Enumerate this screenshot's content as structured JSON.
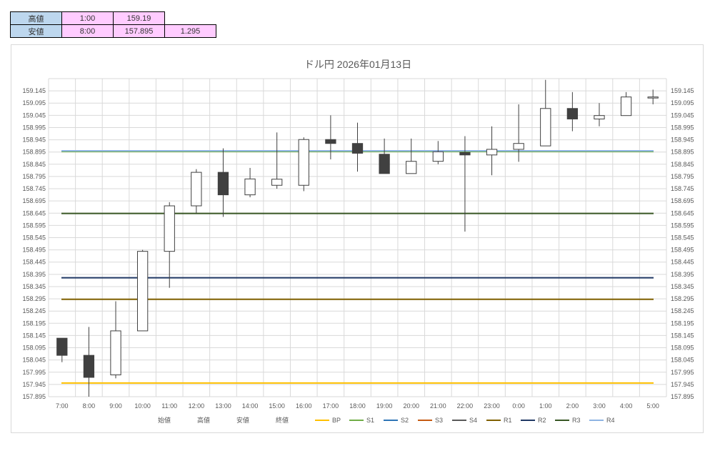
{
  "summary": {
    "high": {
      "label": "高値",
      "time": "1:00",
      "price": "159.19",
      "extra": ""
    },
    "low": {
      "label": "安値",
      "time": "8:00",
      "price": "157.895",
      "extra": "1.295"
    }
  },
  "chart_data": {
    "type": "candlestick",
    "title": "ドル円  2026年01月13日",
    "ylim": [
      157.895,
      159.195
    ],
    "y_ticks": [
      "159.145",
      "159.095",
      "159.045",
      "158.995",
      "158.945",
      "158.895",
      "158.845",
      "158.795",
      "158.745",
      "158.695",
      "158.645",
      "158.595",
      "158.545",
      "158.495",
      "158.445",
      "158.395",
      "158.345",
      "158.295",
      "158.245",
      "158.195",
      "158.145",
      "158.095",
      "158.045",
      "157.995",
      "157.945",
      "157.895"
    ],
    "categories": [
      "7:00",
      "8:00",
      "9:00",
      "10:00",
      "11:00",
      "12:00",
      "13:00",
      "14:00",
      "15:00",
      "16:00",
      "17:00",
      "18:00",
      "19:00",
      "20:00",
      "21:00",
      "22:00",
      "23:00",
      "0:00",
      "1:00",
      "2:00",
      "3:00",
      "4:00",
      "5:00"
    ],
    "open": [
      158.134,
      158.064,
      157.984,
      158.164,
      158.489,
      158.675,
      158.812,
      158.72,
      158.759,
      158.759,
      158.946,
      158.93,
      158.886,
      158.807,
      158.857,
      158.893,
      158.883,
      158.906,
      158.92,
      159.073,
      159.03,
      159.044,
      159.12
    ],
    "high": [
      158.134,
      158.18,
      158.285,
      158.495,
      158.69,
      158.825,
      158.91,
      158.83,
      158.975,
      158.955,
      159.045,
      159.015,
      158.95,
      158.95,
      158.94,
      158.96,
      159.0,
      159.09,
      159.19,
      159.14,
      159.095,
      159.14,
      159.15
    ],
    "low": [
      158.036,
      157.895,
      157.97,
      158.164,
      158.34,
      158.645,
      158.63,
      158.71,
      158.745,
      158.735,
      158.865,
      158.815,
      158.807,
      158.807,
      158.845,
      158.57,
      158.8,
      158.855,
      158.92,
      158.98,
      159.0,
      159.044,
      159.09
    ],
    "close": [
      158.064,
      157.974,
      158.164,
      158.489,
      158.675,
      158.812,
      158.72,
      158.785,
      158.784,
      158.946,
      158.93,
      158.89,
      158.807,
      158.857,
      158.896,
      158.883,
      158.906,
      158.93,
      159.073,
      159.03,
      159.044,
      159.12,
      159.12
    ],
    "levels": [
      {
        "name": "BP",
        "value": 157.951,
        "color": "#ffc000"
      },
      {
        "name": "S1",
        "value": 158.897,
        "color": "#70ad47"
      },
      {
        "name": "S2",
        "value": 158.381,
        "color": "#1f3864"
      },
      {
        "name": "S3",
        "value": 158.293,
        "color": "#806000"
      },
      {
        "name": "S4",
        "value": 158.644,
        "color": "#375623"
      },
      {
        "name": "R4",
        "value": 158.9,
        "color": "#8eb4e3"
      }
    ],
    "legend": [
      {
        "name": "始値",
        "color": ""
      },
      {
        "name": "高値",
        "color": ""
      },
      {
        "name": "安値",
        "color": ""
      },
      {
        "name": "終値",
        "color": ""
      },
      {
        "name": "BP",
        "color": "#ffc000"
      },
      {
        "name": "S1",
        "color": "#70ad47"
      },
      {
        "name": "S2",
        "color": "#2e75b6"
      },
      {
        "name": "S3",
        "color": "#c55a11"
      },
      {
        "name": "S4",
        "color": "#595959"
      },
      {
        "name": "R1",
        "color": "#806000"
      },
      {
        "name": "R2",
        "color": "#1f3864"
      },
      {
        "name": "R3",
        "color": "#375623"
      },
      {
        "name": "R4",
        "color": "#8eb4e3"
      }
    ],
    "grid": true,
    "colors": {
      "up_fill": "#ffffff",
      "down_fill": "#404040",
      "stroke": "#404040",
      "grid": "#d9d9d9"
    }
  }
}
